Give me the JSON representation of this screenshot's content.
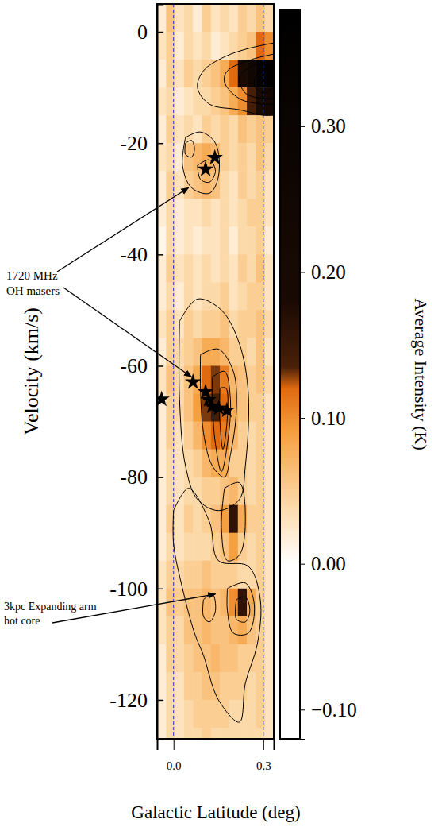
{
  "chart_data": {
    "type": "heatmap",
    "x_label": "Galactic Latitude (deg)",
    "y_label": "Velocity (km/s)",
    "xlim": [
      -0.055,
      0.335
    ],
    "ylim": [
      5,
      -127
    ],
    "xticks": [
      {
        "value": 0,
        "label": "0.0"
      },
      0.3
    ],
    "yticks": [
      0,
      -20,
      -40,
      -60,
      -80,
      -100,
      -120
    ],
    "grid": "x",
    "cells": {
      "x": [
        -0.04,
        -0.01,
        0.02,
        0.05,
        0.08,
        0.11,
        0.14,
        0.17,
        0.2,
        0.23,
        0.26,
        0.29,
        0.32
      ],
      "y": [
        2.5,
        -2.5,
        -7.5,
        -12.5,
        -17.5,
        -22.5,
        -27.5,
        -32.5,
        -37.5,
        -42.5,
        -47.5,
        -52.5,
        -57.5,
        -62.5,
        -67.5,
        -72.5,
        -77.5,
        -82.5,
        -87.5,
        -92.5,
        -97.5,
        -102.5,
        -107.5,
        -112.5,
        -117.5,
        -122.5,
        -127.5
      ],
      "z": [
        [
          0.02,
          0.06,
          0.03,
          0.04,
          0.02,
          0.05,
          0.03,
          0.04,
          0.03,
          0.05,
          0.04,
          0.06,
          0.04
        ],
        [
          0.03,
          0.05,
          0.02,
          0.04,
          0.03,
          0.04,
          0.02,
          0.03,
          0.04,
          0.05,
          0.06,
          0.12,
          0.1
        ],
        [
          0.02,
          0.05,
          0.03,
          0.05,
          0.04,
          0.05,
          0.06,
          0.08,
          0.12,
          0.18,
          0.26,
          0.34,
          0.36
        ],
        [
          0.03,
          0.04,
          0.02,
          0.03,
          0.04,
          0.04,
          0.05,
          0.06,
          0.08,
          0.1,
          0.14,
          0.2,
          0.22
        ],
        [
          0.02,
          0.05,
          0.03,
          0.04,
          0.03,
          0.05,
          0.04,
          0.05,
          0.04,
          0.06,
          0.05,
          0.06,
          0.05
        ],
        [
          0.03,
          0.04,
          0.02,
          0.06,
          0.07,
          0.08,
          0.07,
          0.05,
          0.04,
          0.05,
          0.04,
          0.06,
          0.04
        ],
        [
          0.02,
          0.05,
          0.03,
          0.05,
          0.06,
          0.07,
          0.06,
          0.04,
          0.03,
          0.05,
          0.04,
          0.05,
          0.03
        ],
        [
          0.02,
          0.04,
          0.02,
          0.03,
          0.03,
          0.04,
          0.03,
          0.04,
          0.03,
          0.04,
          0.05,
          0.05,
          0.03
        ],
        [
          0.01,
          0.04,
          0.02,
          0.03,
          0.02,
          0.03,
          0.03,
          0.04,
          0.02,
          0.04,
          0.04,
          0.05,
          0.02
        ],
        [
          0.02,
          0.05,
          0.03,
          0.04,
          0.03,
          0.04,
          0.03,
          0.04,
          0.03,
          0.05,
          0.04,
          0.06,
          0.03
        ],
        [
          0.02,
          0.04,
          0.02,
          0.04,
          0.03,
          0.04,
          0.04,
          0.05,
          0.03,
          0.04,
          0.05,
          0.05,
          0.03
        ],
        [
          0.03,
          0.05,
          0.03,
          0.05,
          0.04,
          0.05,
          0.05,
          0.06,
          0.04,
          0.05,
          0.05,
          0.06,
          0.04
        ],
        [
          0.02,
          0.05,
          0.04,
          0.05,
          0.06,
          0.08,
          0.08,
          0.07,
          0.05,
          0.05,
          0.04,
          0.06,
          0.03
        ],
        [
          0.03,
          0.06,
          0.04,
          0.06,
          0.08,
          0.12,
          0.13,
          0.11,
          0.07,
          0.06,
          0.05,
          0.06,
          0.04
        ],
        [
          0.02,
          0.05,
          0.04,
          0.06,
          0.09,
          0.13,
          0.14,
          0.12,
          0.08,
          0.06,
          0.05,
          0.05,
          0.03
        ],
        [
          0.02,
          0.05,
          0.03,
          0.05,
          0.07,
          0.1,
          0.12,
          0.11,
          0.07,
          0.05,
          0.04,
          0.05,
          0.03
        ],
        [
          0.02,
          0.04,
          0.03,
          0.04,
          0.05,
          0.07,
          0.08,
          0.08,
          0.05,
          0.05,
          0.04,
          0.05,
          0.03
        ],
        [
          0.02,
          0.04,
          0.03,
          0.04,
          0.04,
          0.05,
          0.05,
          0.06,
          0.07,
          0.05,
          0.04,
          0.05,
          0.03
        ],
        [
          0.02,
          0.05,
          0.03,
          0.05,
          0.04,
          0.05,
          0.06,
          0.09,
          0.16,
          0.08,
          0.05,
          0.05,
          0.03
        ],
        [
          0.02,
          0.04,
          0.03,
          0.04,
          0.04,
          0.04,
          0.05,
          0.06,
          0.09,
          0.05,
          0.04,
          0.05,
          0.03
        ],
        [
          0.03,
          0.05,
          0.04,
          0.05,
          0.05,
          0.06,
          0.05,
          0.05,
          0.05,
          0.04,
          0.04,
          0.05,
          0.03
        ],
        [
          0.03,
          0.06,
          0.05,
          0.06,
          0.06,
          0.07,
          0.06,
          0.07,
          0.1,
          0.16,
          0.08,
          0.05,
          0.03
        ],
        [
          0.03,
          0.05,
          0.04,
          0.06,
          0.06,
          0.07,
          0.06,
          0.06,
          0.07,
          0.08,
          0.06,
          0.05,
          0.03
        ],
        [
          0.02,
          0.05,
          0.04,
          0.05,
          0.06,
          0.06,
          0.07,
          0.06,
          0.06,
          0.05,
          0.05,
          0.05,
          0.03
        ],
        [
          0.02,
          0.04,
          0.03,
          0.05,
          0.05,
          0.06,
          0.06,
          0.05,
          0.05,
          0.05,
          0.04,
          0.05,
          0.03
        ],
        [
          0.02,
          0.04,
          0.03,
          0.04,
          0.05,
          0.05,
          0.05,
          0.05,
          0.04,
          0.04,
          0.04,
          0.05,
          0.03
        ],
        [
          0.02,
          0.04,
          0.03,
          0.04,
          0.04,
          0.05,
          0.04,
          0.04,
          0.04,
          0.04,
          0.04,
          0.04,
          0.03
        ]
      ]
    },
    "colorbar": {
      "label": "Average Intensity (K)",
      "range": [
        -0.12,
        0.38
      ],
      "ticks": [
        {
          "value": 0.3,
          "label": "0.30"
        },
        {
          "value": 0.2,
          "label": "0.20"
        },
        {
          "value": 0.1,
          "label": "0.10"
        },
        {
          "value": 0,
          "label": "0.00"
        },
        {
          "value": -0.1,
          "label": "−0.10"
        }
      ]
    },
    "contours": [
      {
        "x": [
          0.335,
          0.25,
          0.17,
          0.1,
          0.08,
          0.12,
          0.22,
          0.3,
          0.335
        ],
        "y": [
          -2,
          -3,
          -4.5,
          -7,
          -10,
          -13,
          -14,
          -15,
          -15
        ]
      },
      {
        "x": [
          0.335,
          0.26,
          0.18,
          0.17,
          0.22,
          0.3,
          0.335
        ],
        "y": [
          -4,
          -5,
          -7,
          -9,
          -12,
          -13,
          -13
        ]
      },
      {
        "x": [
          0.335,
          0.27,
          0.22,
          0.24,
          0.3,
          0.335
        ],
        "y": [
          -5,
          -6,
          -8,
          -11,
          -12,
          -12
        ]
      },
      {
        "x": [
          0.32,
          0.28,
          0.27,
          0.3,
          0.33,
          0.32
        ],
        "y": [
          -6,
          -7.5,
          -9.5,
          -11,
          -10,
          -6
        ]
      },
      {
        "x": [
          0.04,
          0.09,
          0.14,
          0.15,
          0.12,
          0.06,
          0.03,
          0.04
        ],
        "y": [
          -19,
          -18,
          -20,
          -26,
          -29,
          -28,
          -24,
          -19
        ]
      },
      {
        "x": [
          0.04,
          0.06,
          0.07,
          0.06,
          0.04,
          0.04
        ],
        "y": [
          -20,
          -19.5,
          -21,
          -22.5,
          -22,
          -20
        ]
      },
      {
        "x": [
          0.08,
          0.12,
          0.14,
          0.12,
          0.09,
          0.08
        ],
        "y": [
          -24,
          -23,
          -25,
          -27,
          -26.5,
          -24
        ]
      },
      {
        "x": [
          0.02,
          0.08,
          0.16,
          0.22,
          0.25,
          0.24,
          0.22,
          0.15,
          0.08,
          0.04,
          0.02,
          0.02
        ],
        "y": [
          -52,
          -48,
          -50,
          -56,
          -65,
          -78,
          -84,
          -86,
          -84,
          -78,
          -66,
          -52
        ]
      },
      {
        "x": [
          0.09,
          0.15,
          0.2,
          0.21,
          0.19,
          0.17,
          0.13,
          0.1,
          0.09,
          0.09
        ],
        "y": [
          -58,
          -57,
          -61,
          -68,
          -76,
          -80,
          -78,
          -72,
          -64,
          -58
        ]
      },
      {
        "x": [
          0.13,
          0.17,
          0.19,
          0.18,
          0.16,
          0.14,
          0.13,
          0.13
        ],
        "y": [
          -62,
          -61,
          -66,
          -74,
          -79,
          -74,
          -67,
          -62
        ]
      },
      {
        "x": [
          0.155,
          0.175,
          0.18,
          0.165,
          0.155,
          0.155
        ],
        "y": [
          -64,
          -64,
          -69,
          -75,
          -70,
          -64
        ]
      },
      {
        "x": [
          0.17,
          0.22,
          0.24,
          0.22,
          0.18,
          0.16,
          0.17
        ],
        "y": [
          -82,
          -81,
          -88,
          -94,
          -95,
          -89,
          -82
        ]
      },
      {
        "x": [
          0.0,
          0.05,
          0.12,
          0.15,
          0.25,
          0.29,
          0.28,
          0.24,
          0.22,
          0.15,
          0.1,
          0.07,
          0.03,
          0.0,
          0.0
        ],
        "y": [
          -86,
          -82,
          -88,
          -95,
          -96,
          -102,
          -110,
          -117,
          -124,
          -120,
          -112,
          -108,
          -100,
          -92,
          -86
        ]
      },
      {
        "x": [
          0.18,
          0.24,
          0.27,
          0.25,
          0.2,
          0.18,
          0.18
        ],
        "y": [
          -100,
          -99,
          -103,
          -108,
          -108,
          -104,
          -100
        ]
      },
      {
        "x": [
          0.1,
          0.13,
          0.14,
          0.12,
          0.1,
          0.1
        ],
        "y": [
          -102,
          -101,
          -104,
          -106,
          -105,
          -102
        ]
      },
      {
        "x": [
          0.21,
          0.24,
          0.255,
          0.24,
          0.21,
          0.21
        ],
        "y": [
          -102,
          -101.5,
          -104,
          -106,
          -105.5,
          -102
        ]
      }
    ],
    "points": {
      "marker": "star",
      "color": "#000000",
      "x": [
        0.138,
        0.107,
        0.065,
        -0.04,
        0.107,
        0.117,
        0.128,
        0.151,
        0.178
      ],
      "y": [
        -22.6,
        -24.7,
        -62.9,
        -66,
        -64.7,
        -66.1,
        -67.3,
        -67.6,
        -68
      ]
    },
    "annotations": [
      {
        "lines": [
          "1720 MHz",
          "OH masers"
        ],
        "targets": [
          [
            0.05,
            -28
          ],
          [
            0.06,
            -62
          ]
        ]
      },
      {
        "lines": [
          "3kpc Expanding arm",
          "hot core"
        ],
        "targets": [
          [
            0.14,
            -101
          ]
        ]
      }
    ]
  }
}
